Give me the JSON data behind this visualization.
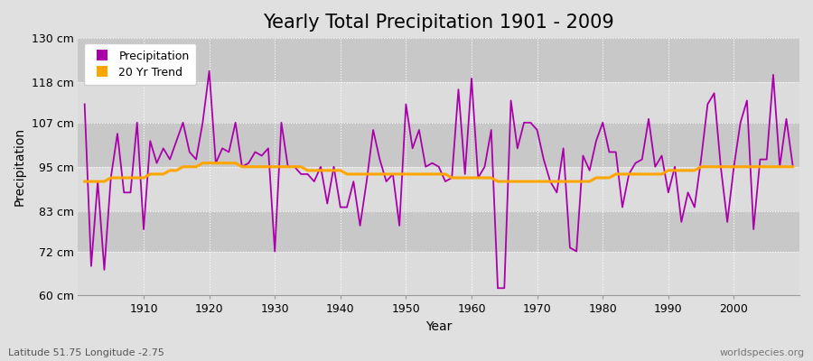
{
  "title": "Yearly Total Precipitation 1901 - 2009",
  "xlabel": "Year",
  "ylabel": "Precipitation",
  "subtitle_left": "Latitude 51.75 Longitude -2.75",
  "subtitle_right": "worldspecies.org",
  "years": [
    1901,
    1902,
    1903,
    1904,
    1905,
    1906,
    1907,
    1908,
    1909,
    1910,
    1911,
    1912,
    1913,
    1914,
    1915,
    1916,
    1917,
    1918,
    1919,
    1920,
    1921,
    1922,
    1923,
    1924,
    1925,
    1926,
    1927,
    1928,
    1929,
    1930,
    1931,
    1932,
    1933,
    1934,
    1935,
    1936,
    1937,
    1938,
    1939,
    1940,
    1941,
    1942,
    1943,
    1944,
    1945,
    1946,
    1947,
    1948,
    1949,
    1950,
    1951,
    1952,
    1953,
    1954,
    1955,
    1956,
    1957,
    1958,
    1959,
    1960,
    1961,
    1962,
    1963,
    1964,
    1965,
    1966,
    1967,
    1968,
    1969,
    1970,
    1971,
    1972,
    1973,
    1974,
    1975,
    1976,
    1977,
    1978,
    1979,
    1980,
    1981,
    1982,
    1983,
    1984,
    1985,
    1986,
    1987,
    1988,
    1989,
    1990,
    1991,
    1992,
    1993,
    1994,
    1995,
    1996,
    1997,
    1998,
    1999,
    2000,
    2001,
    2002,
    2003,
    2004,
    2005,
    2006,
    2007,
    2008,
    2009
  ],
  "precip": [
    112,
    68,
    91,
    67,
    92,
    104,
    88,
    88,
    107,
    78,
    102,
    96,
    100,
    97,
    102,
    107,
    99,
    97,
    107,
    121,
    96,
    100,
    99,
    107,
    95,
    96,
    99,
    98,
    100,
    72,
    107,
    95,
    95,
    93,
    93,
    91,
    95,
    85,
    95,
    84,
    84,
    91,
    79,
    91,
    105,
    97,
    91,
    93,
    79,
    112,
    100,
    105,
    95,
    96,
    95,
    91,
    92,
    116,
    93,
    119,
    92,
    95,
    105,
    62,
    62,
    113,
    100,
    107,
    107,
    105,
    97,
    91,
    88,
    100,
    73,
    72,
    98,
    94,
    102,
    107,
    99,
    99,
    84,
    93,
    96,
    97,
    108,
    95,
    98,
    88,
    95,
    80,
    88,
    84,
    97,
    112,
    115,
    95,
    80,
    95,
    107,
    113,
    78,
    97,
    97,
    120,
    95,
    108,
    95
  ],
  "trend": [
    91,
    91,
    91,
    91,
    92,
    92,
    92,
    92,
    92,
    92,
    93,
    93,
    93,
    94,
    94,
    95,
    95,
    95,
    96,
    96,
    96,
    96,
    96,
    96,
    95,
    95,
    95,
    95,
    95,
    95,
    95,
    95,
    95,
    95,
    94,
    94,
    94,
    94,
    94,
    94,
    93,
    93,
    93,
    93,
    93,
    93,
    93,
    93,
    93,
    93,
    93,
    93,
    93,
    93,
    93,
    93,
    92,
    92,
    92,
    92,
    92,
    92,
    92,
    91,
    91,
    91,
    91,
    91,
    91,
    91,
    91,
    91,
    91,
    91,
    91,
    91,
    91,
    91,
    92,
    92,
    92,
    93,
    93,
    93,
    93,
    93,
    93,
    93,
    93,
    94,
    94,
    94,
    94,
    94,
    95,
    95,
    95,
    95,
    95,
    95,
    95,
    95,
    95,
    95,
    95,
    95,
    95,
    95,
    95
  ],
  "precip_color": "#AA00AA",
  "trend_color": "#FFA500",
  "bg_color": "#E0E0E0",
  "plot_bg_color": "#E8E8E8",
  "band_color_light": "#DCDCDC",
  "band_color_dark": "#C8C8C8",
  "ylim": [
    60,
    130
  ],
  "yticks": [
    60,
    72,
    83,
    95,
    107,
    118,
    130
  ],
  "ytick_labels": [
    "60 cm",
    "72 cm",
    "83 cm",
    "95 cm",
    "107 cm",
    "118 cm",
    "130 cm"
  ],
  "xlim": [
    1900,
    2010
  ],
  "xticks": [
    1910,
    1920,
    1930,
    1940,
    1950,
    1960,
    1970,
    1980,
    1990,
    2000
  ],
  "title_fontsize": 15,
  "label_fontsize": 10,
  "tick_fontsize": 9,
  "legend_items": [
    "Precipitation",
    "20 Yr Trend"
  ],
  "legend_colors": [
    "#AA00AA",
    "#FFA500"
  ]
}
